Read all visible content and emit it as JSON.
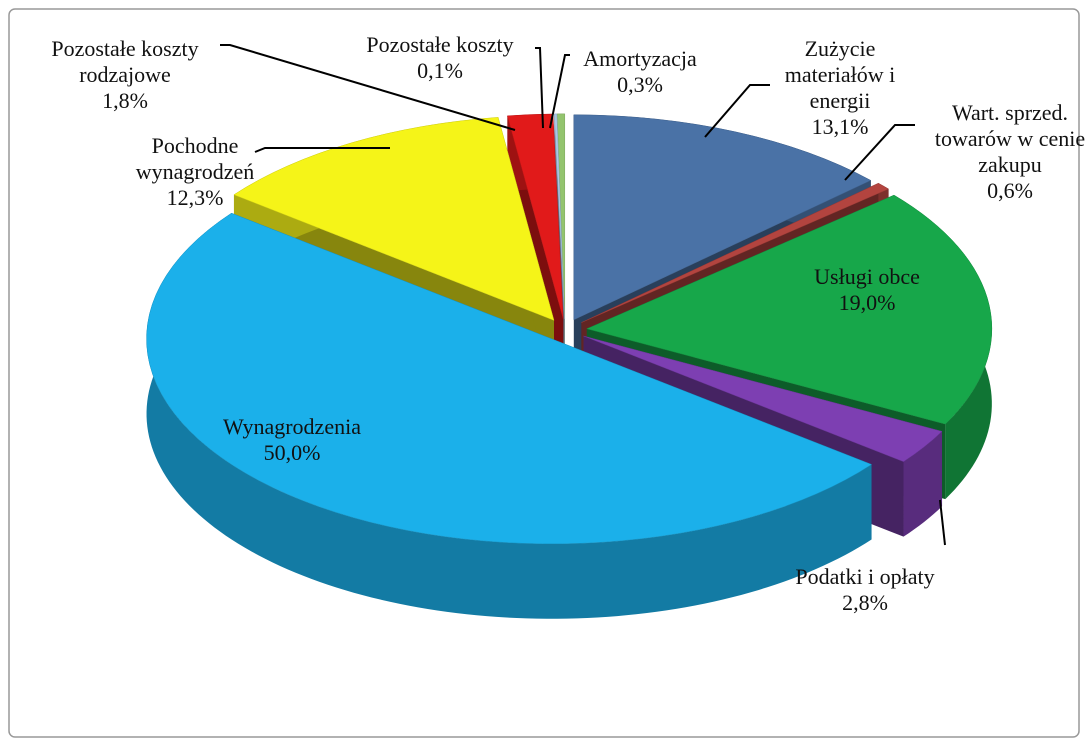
{
  "chart_data": {
    "type": "pie",
    "categories": [
      "Zużycie materiałów i energii",
      "Wart. sprzed. towarów w cenie zakupu",
      "Usługi obce",
      "Podatki i opłaty",
      "Wynagrodzenia",
      "Pochodne wynagrodzeń",
      "Pozostałe koszty rodzajowe",
      "Pozostałe koszty",
      "Amortyzacja"
    ],
    "values": [
      13.1,
      0.6,
      19.0,
      2.8,
      50.0,
      12.3,
      1.8,
      0.1,
      0.3
    ],
    "value_labels": [
      "13,1%",
      "0,6%",
      "19,0%",
      "2,8%",
      "50,0%",
      "12,3%",
      "1,8%",
      "0,1%",
      "0,3%"
    ],
    "colors": [
      "#4a72a6",
      "#b3443f",
      "#17a74a",
      "#7d3fb2",
      "#1bb0ea",
      "#f5f418",
      "#e11a1a",
      "#a9c7e6",
      "#93c46e"
    ]
  }
}
